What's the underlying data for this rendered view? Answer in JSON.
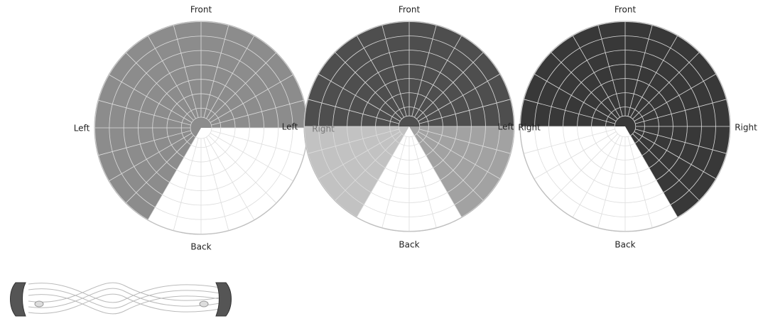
{
  "diagrams": [
    {
      "front": "Front",
      "left": "Left",
      "right": "Right",
      "back": "Back"
    },
    {
      "front": "Front",
      "left": "Left",
      "right": "Right",
      "back": "Back"
    },
    {
      "front": "Front",
      "left": "Left",
      "right": "Right",
      "back": "Back"
    }
  ]
}
